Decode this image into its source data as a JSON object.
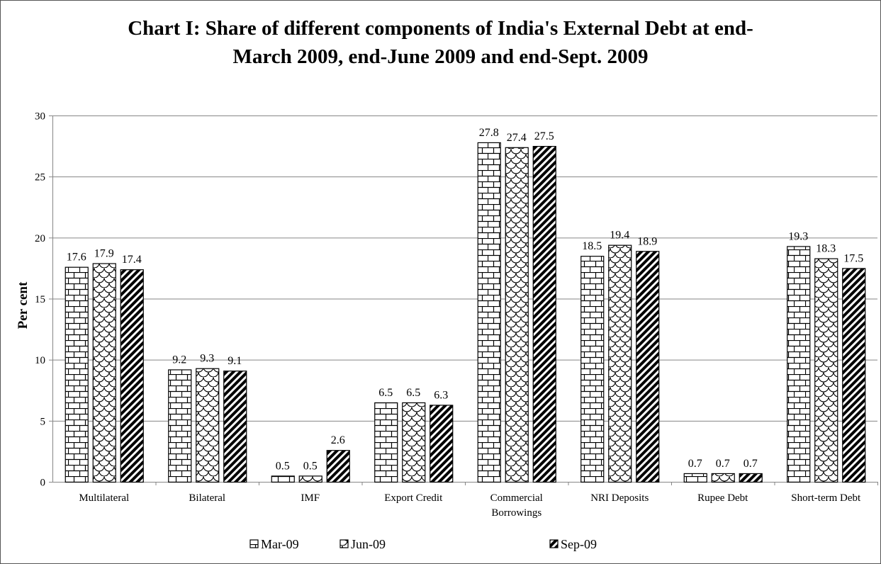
{
  "chart_data": {
    "type": "bar",
    "title_lines": [
      "Chart I: Share of different components of India's External Debt at end-",
      "March 2009, end-June 2009 and end-Sept. 2009"
    ],
    "ylabel": "Per cent",
    "ylim": [
      0,
      30
    ],
    "yticks": [
      0,
      5,
      10,
      15,
      20,
      25,
      30
    ],
    "grid": true,
    "legend_position": "bottom",
    "categories": [
      [
        "Multilateral"
      ],
      [
        "Bilateral"
      ],
      [
        "IMF"
      ],
      [
        "Export Credit"
      ],
      [
        "Commercial",
        "Borrowings"
      ],
      [
        "NRI Deposits"
      ],
      [
        "Rupee Debt"
      ],
      [
        "Short-term Debt"
      ]
    ],
    "series": [
      {
        "name": "Mar-09",
        "pattern": "brick",
        "values": [
          17.6,
          9.2,
          0.5,
          6.5,
          27.8,
          18.5,
          0.7,
          19.3
        ]
      },
      {
        "name": "Jun-09",
        "pattern": "scale",
        "values": [
          17.9,
          9.3,
          0.5,
          6.5,
          27.4,
          19.4,
          0.7,
          18.3
        ]
      },
      {
        "name": "Sep-09",
        "pattern": "diagonal",
        "values": [
          17.4,
          9.1,
          2.6,
          6.3,
          27.5,
          18.9,
          0.7,
          17.5
        ]
      }
    ],
    "colors": {
      "grid": "#868686",
      "axis": "#868686",
      "stroke": "#000000"
    }
  }
}
